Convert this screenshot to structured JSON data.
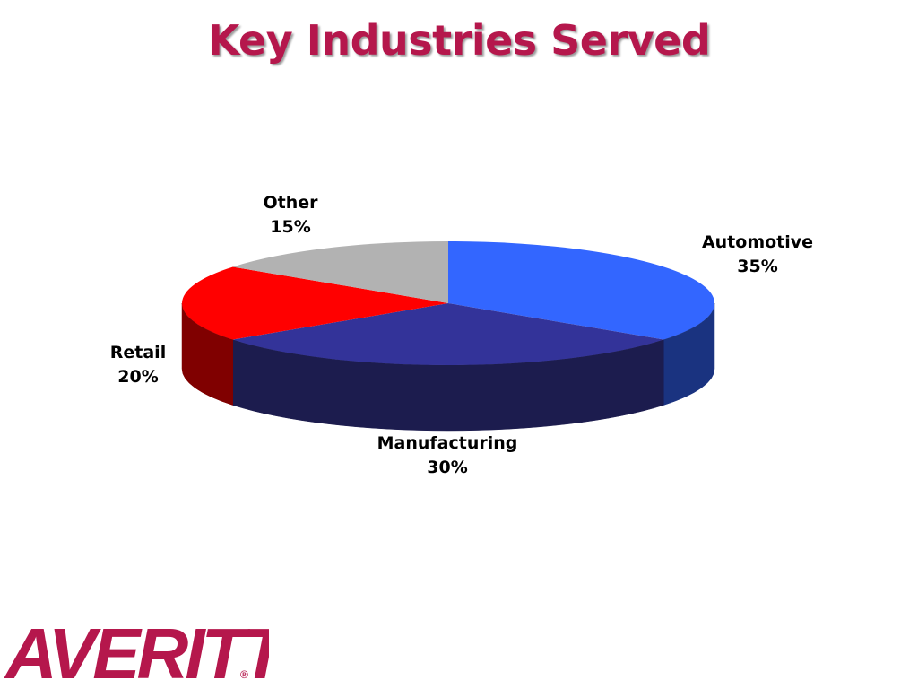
{
  "slide": {
    "title": "Key Industries Served",
    "logo_text": "AVERITT",
    "logo_mark": "®"
  },
  "chart_data": {
    "type": "pie",
    "title": "Key Industries Served",
    "style": "3d",
    "categories": [
      "Automotive",
      "Manufacturing",
      "Retail",
      "Other"
    ],
    "values": [
      35,
      30,
      20,
      15
    ],
    "labels": [
      "35%",
      "30%",
      "20%",
      "15%"
    ],
    "colors": {
      "Automotive": "#3366ff",
      "Manufacturing": "#333399",
      "Retail": "#ff0000",
      "Other": "#b2b2b2"
    },
    "side_colors": {
      "Automotive": "#1a3380",
      "Manufacturing": "#1c1c4e",
      "Retail": "#800000",
      "Other": "#595959"
    }
  }
}
